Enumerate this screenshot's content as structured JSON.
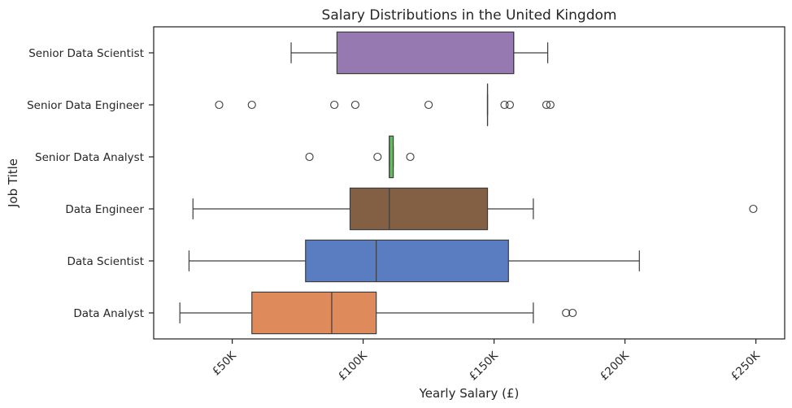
{
  "chart_data": {
    "type": "boxplot",
    "orientation": "horizontal",
    "title": "Salary Distributions in the United Kingdom",
    "xlabel": "Yearly Salary (£)",
    "ylabel": "Job Title",
    "xlim": [
      20000,
      261000
    ],
    "xticks": [
      {
        "value": 50000,
        "label": "£50K"
      },
      {
        "value": 100000,
        "label": "£100K"
      },
      {
        "value": 150000,
        "label": "£150K"
      },
      {
        "value": 200000,
        "label": "£200K"
      },
      {
        "value": 250000,
        "label": "£250K"
      }
    ],
    "grid": false,
    "categories": [
      "Senior Data Scientist",
      "Senior Data Engineer",
      "Senior Data Analyst",
      "Data Engineer",
      "Data Scientist",
      "Data Analyst"
    ],
    "boxes": [
      {
        "category": "Senior Data Scientist",
        "color": "#9579b0",
        "whisker_low": 72500,
        "q1": 90000,
        "median": 157500,
        "q3": 157500,
        "whisker_high": 170500,
        "outliers": []
      },
      {
        "category": "Senior Data Engineer",
        "color": "#c67a94",
        "whisker_low": 147500,
        "q1": 147500,
        "median": 147500,
        "q3": 147500,
        "whisker_high": 147500,
        "outliers": [
          45000,
          57500,
          89000,
          97000,
          125000,
          154000,
          156000,
          170000,
          171500
        ]
      },
      {
        "category": "Senior Data Analyst",
        "color": "#6ab863",
        "whisker_low": 110000,
        "q1": 110000,
        "median": 110000,
        "q3": 111500,
        "whisker_high": 111500,
        "outliers": [
          79500,
          105500,
          118000
        ]
      },
      {
        "category": "Data Engineer",
        "color": "#835f43",
        "whisker_low": 35000,
        "q1": 95000,
        "median": 110000,
        "q3": 147500,
        "whisker_high": 165000,
        "outliers": [
          249000
        ]
      },
      {
        "category": "Data Scientist",
        "color": "#5a7dc2",
        "whisker_low": 33500,
        "q1": 78000,
        "median": 105000,
        "q3": 155500,
        "whisker_high": 205500,
        "outliers": []
      },
      {
        "category": "Data Analyst",
        "color": "#de8a5a",
        "whisker_low": 30000,
        "q1": 57500,
        "median": 88000,
        "q3": 105000,
        "whisker_high": 165000,
        "outliers": [
          177500,
          180000
        ]
      }
    ]
  }
}
